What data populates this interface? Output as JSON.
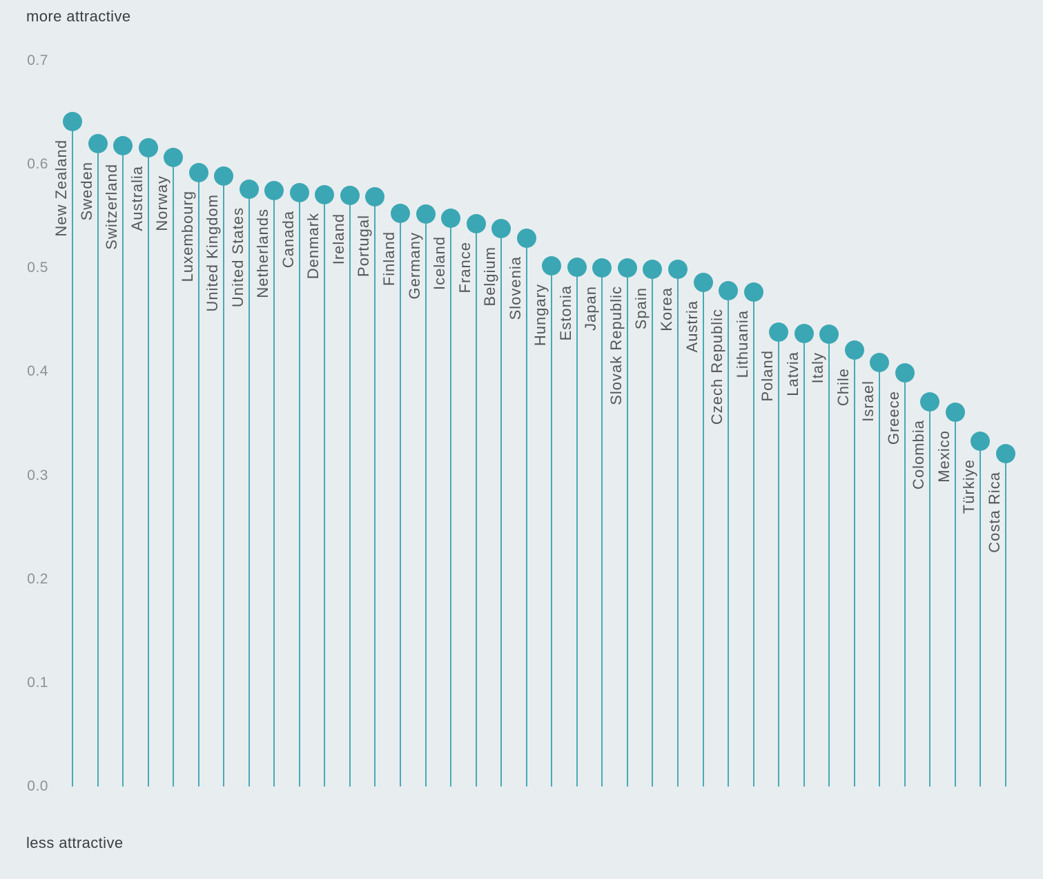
{
  "chart_data": {
    "type": "lollipop",
    "top_axis_label": "more attractive",
    "bottom_axis_label": "less attractive",
    "y_ticks": [
      "0.0",
      "0.1",
      "0.2",
      "0.3",
      "0.4",
      "0.5",
      "0.6",
      "0.7"
    ],
    "ylim": [
      0,
      0.7
    ],
    "grid": false,
    "legend": false,
    "categories": [
      "New Zealand",
      "Sweden",
      "Switzerland",
      "Australia",
      "Norway",
      "Luxembourg",
      "United Kingdom",
      "United States",
      "Netherlands",
      "Canada",
      "Denmark",
      "Ireland",
      "Portugal",
      "Finland",
      "Germany",
      "Iceland",
      "France",
      "Belgium",
      "Slovenia",
      "Hungary",
      "Estonia",
      "Japan",
      "Slovak Republic",
      "Spain",
      "Korea",
      "Austria",
      "Czech Republic",
      "Lithuania",
      "Poland",
      "Latvia",
      "Italy",
      "Chile",
      "Israel",
      "Greece",
      "Colombia",
      "Mexico",
      "Türkiye",
      "Costa Rica"
    ],
    "values": [
      0.641,
      0.62,
      0.618,
      0.616,
      0.607,
      0.592,
      0.589,
      0.576,
      0.575,
      0.573,
      0.571,
      0.57,
      0.569,
      0.553,
      0.552,
      0.548,
      0.543,
      0.538,
      0.529,
      0.502,
      0.501,
      0.5,
      0.5,
      0.499,
      0.499,
      0.486,
      0.478,
      0.477,
      0.438,
      0.437,
      0.436,
      0.421,
      0.409,
      0.399,
      0.371,
      0.361,
      0.333,
      0.321
    ],
    "colors": {
      "dot": "#3ba7b4",
      "stem": "#47aab6",
      "background": "#e8edef",
      "tick_text": "#8d9194",
      "country_text": "#54565a",
      "corner_text": "#3b3d3f"
    }
  }
}
